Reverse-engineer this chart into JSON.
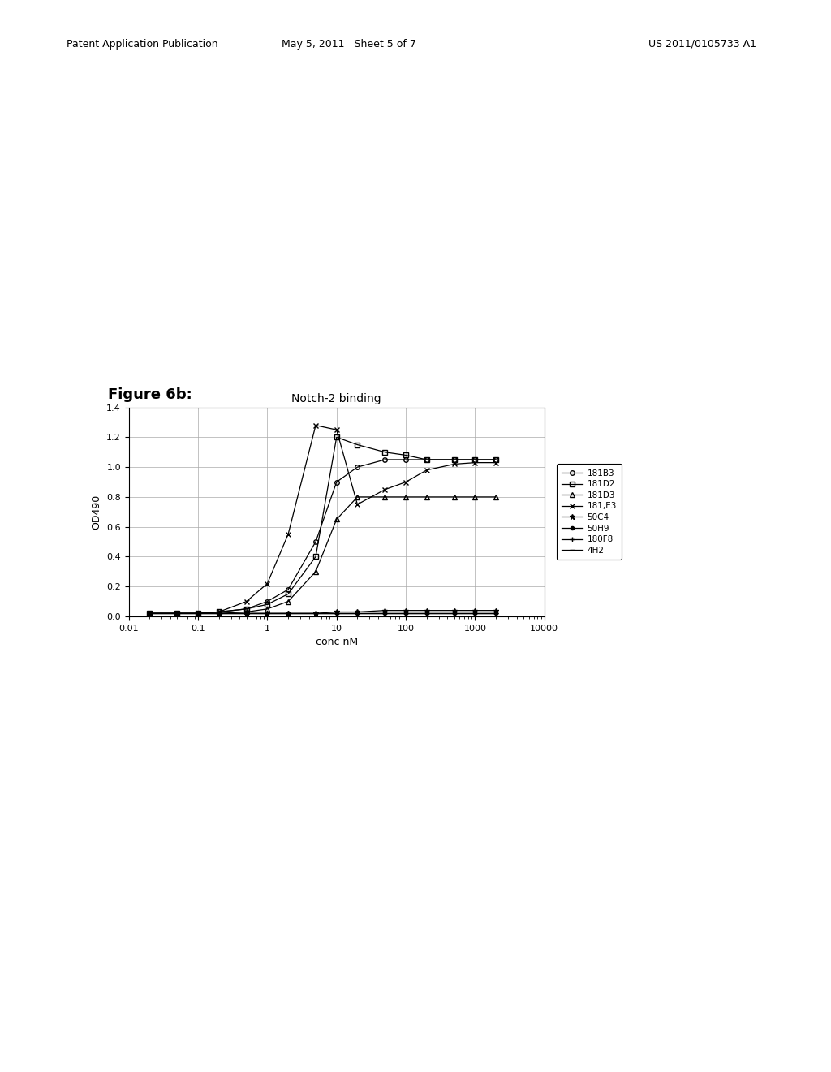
{
  "title": "Notch-2 binding",
  "xlabel": "conc nM",
  "ylabel": "OD490",
  "figure_label": "Figure 6b:",
  "header_left": "Patent Application Publication",
  "header_mid": "May 5, 2011   Sheet 5 of 7",
  "header_right": "US 2011/0105733 A1",
  "background_color": "#ffffff",
  "yticks": [
    0,
    0.2,
    0.4,
    0.6,
    0.8,
    1.0,
    1.2,
    1.4
  ],
  "series": {
    "181B3": {
      "x": [
        0.02,
        0.05,
        0.1,
        0.2,
        0.5,
        1,
        2,
        5,
        10,
        20,
        50,
        100,
        200,
        500,
        1000,
        2000
      ],
      "y": [
        0.02,
        0.02,
        0.02,
        0.03,
        0.05,
        0.1,
        0.18,
        0.5,
        0.9,
        1.0,
        1.05,
        1.05,
        1.05,
        1.05,
        1.05,
        1.05
      ],
      "marker": "o",
      "markersize": 5,
      "fillstyle": "none"
    },
    "181D2": {
      "x": [
        0.02,
        0.05,
        0.1,
        0.2,
        0.5,
        1,
        2,
        5,
        10,
        20,
        50,
        100,
        200,
        500,
        1000,
        2000
      ],
      "y": [
        0.02,
        0.02,
        0.02,
        0.03,
        0.05,
        0.08,
        0.15,
        0.4,
        1.2,
        1.15,
        1.1,
        1.08,
        1.05,
        1.05,
        1.05,
        1.05
      ],
      "marker": "s",
      "markersize": 5,
      "fillstyle": "none"
    },
    "181D3": {
      "x": [
        0.02,
        0.05,
        0.1,
        0.2,
        0.5,
        1,
        2,
        5,
        10,
        20,
        50,
        100,
        200,
        500,
        1000,
        2000
      ],
      "y": [
        0.02,
        0.02,
        0.02,
        0.02,
        0.03,
        0.05,
        0.1,
        0.3,
        0.65,
        0.8,
        0.8,
        0.8,
        0.8,
        0.8,
        0.8,
        0.8
      ],
      "marker": "^",
      "markersize": 5,
      "fillstyle": "none"
    },
    "181,E3": {
      "x": [
        0.02,
        0.05,
        0.1,
        0.2,
        0.5,
        1,
        2,
        5,
        10,
        20,
        50,
        100,
        200,
        500,
        1000,
        2000
      ],
      "y": [
        0.02,
        0.02,
        0.02,
        0.03,
        0.1,
        0.22,
        0.55,
        1.28,
        1.25,
        0.75,
        0.85,
        0.9,
        0.98,
        1.02,
        1.03,
        1.03
      ],
      "marker": "x",
      "markersize": 6,
      "fillstyle": "full"
    },
    "50C4": {
      "x": [
        0.02,
        0.05,
        0.1,
        0.2,
        0.5,
        1,
        2,
        5,
        10,
        20,
        50,
        100,
        200,
        500,
        1000,
        2000
      ],
      "y": [
        0.02,
        0.02,
        0.02,
        0.02,
        0.02,
        0.02,
        0.02,
        0.02,
        0.03,
        0.03,
        0.04,
        0.04,
        0.04,
        0.04,
        0.04,
        0.04
      ],
      "marker": "*",
      "markersize": 6,
      "fillstyle": "full"
    },
    "50H9": {
      "x": [
        0.02,
        0.05,
        0.1,
        0.2,
        0.5,
        1,
        2,
        5,
        10,
        20,
        50,
        100,
        200,
        500,
        1000,
        2000
      ],
      "y": [
        0.02,
        0.02,
        0.02,
        0.02,
        0.02,
        0.02,
        0.02,
        0.02,
        0.02,
        0.02,
        0.02,
        0.02,
        0.02,
        0.02,
        0.02,
        0.02
      ],
      "marker": "o",
      "markersize": 4,
      "fillstyle": "full"
    },
    "180F8": {
      "x": [
        0.02,
        0.05,
        0.1,
        0.2,
        0.5,
        1,
        2,
        5,
        10,
        20,
        50,
        100,
        200,
        500,
        1000,
        2000
      ],
      "y": [
        0.02,
        0.02,
        0.02,
        0.02,
        0.02,
        0.02,
        0.02,
        0.02,
        0.02,
        0.02,
        0.02,
        0.02,
        0.02,
        0.02,
        0.02,
        0.02
      ],
      "marker": "+",
      "markersize": 6,
      "fillstyle": "full"
    },
    "4H2": {
      "x": [
        0.02,
        0.05,
        0.1,
        0.2,
        0.5,
        1,
        2,
        5,
        10,
        20,
        50,
        100,
        200,
        500,
        1000,
        2000
      ],
      "y": [
        0.02,
        0.02,
        0.02,
        0.02,
        0.02,
        0.02,
        0.02,
        0.02,
        0.02,
        0.02,
        0.02,
        0.02,
        0.02,
        0.02,
        0.02,
        0.02
      ],
      "marker": "_",
      "markersize": 6,
      "fillstyle": "full"
    }
  }
}
